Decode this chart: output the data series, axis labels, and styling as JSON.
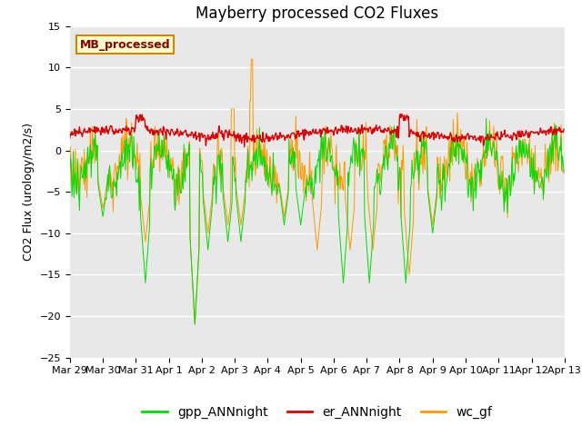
{
  "title": "Mayberry processed CO2 Fluxes",
  "ylabel": "CO2 Flux (urology/m2/s)",
  "xlabel": "",
  "ylim": [
    -25,
    15
  ],
  "yticks": [
    -25,
    -20,
    -15,
    -10,
    -5,
    0,
    5,
    10,
    15
  ],
  "xtick_labels": [
    "Mar 29",
    "Mar 30",
    "Mar 31",
    "Apr 1",
    "Apr 2",
    "Apr 3",
    "Apr 4",
    "Apr 5",
    "Apr 6",
    "Apr 7",
    "Apr 8",
    "Apr 9",
    "Apr 10",
    "Apr 11",
    "Apr 12",
    "Apr 13"
  ],
  "legend_labels": [
    "gpp_ANNnight",
    "er_ANNnight",
    "wc_gf"
  ],
  "colors": {
    "gpp": "#00dd00",
    "er": "#dd0000",
    "wc": "#ff9900"
  },
  "bg_color": "#e8e8e8",
  "grid_color": "#ffffff",
  "box_label": "MB_processed",
  "box_facecolor": "#ffffcc",
  "box_edgecolor": "#cc8800",
  "box_textcolor": "#880000",
  "title_fontsize": 12,
  "axis_fontsize": 9,
  "tick_fontsize": 8,
  "legend_fontsize": 10
}
